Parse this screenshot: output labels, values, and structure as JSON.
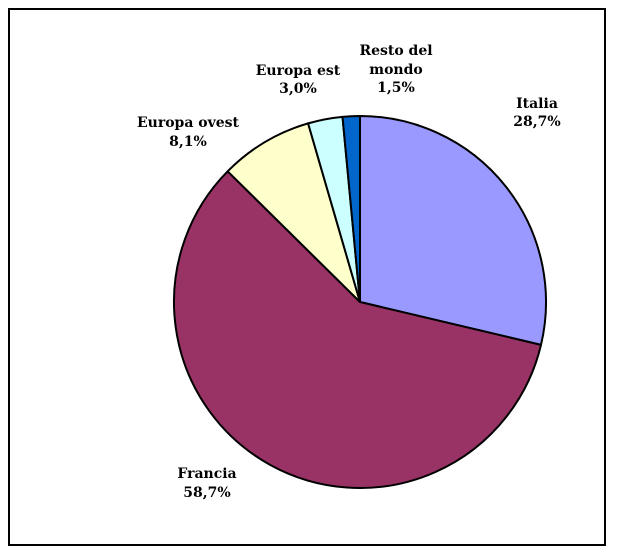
{
  "chart_data": {
    "type": "pie",
    "title": "",
    "legend": "none",
    "slices": [
      {
        "name": "Italia",
        "value": 28.7,
        "label": "28,7%",
        "color": "#9999ff"
      },
      {
        "name": "Francia",
        "value": 58.7,
        "label": "58,7%",
        "color": "#993366"
      },
      {
        "name": "Europa ovest",
        "value": 8.1,
        "label": "8,1%",
        "color": "#ffffcc"
      },
      {
        "name": "Europa est",
        "value": 3.0,
        "label": "3,0%",
        "color": "#ccffff"
      },
      {
        "name": "Resto del mondo",
        "value": 1.5,
        "label": "1,5%",
        "color": "#0066cc"
      }
    ]
  }
}
